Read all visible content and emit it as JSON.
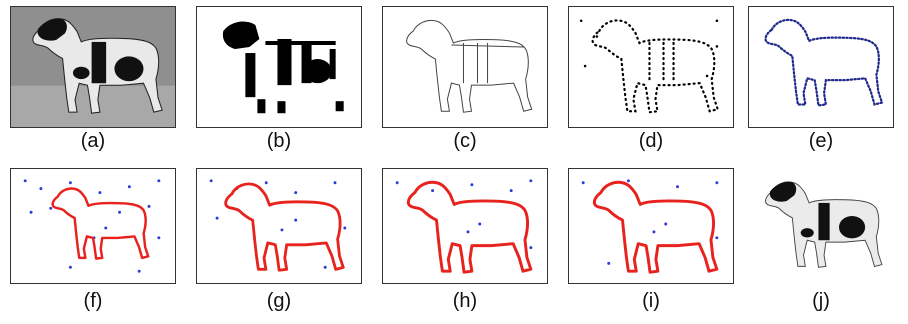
{
  "figure": {
    "row1": [
      {
        "id": "a",
        "label": "(a)"
      },
      {
        "id": "b",
        "label": "(b)"
      },
      {
        "id": "c",
        "label": "(c)"
      },
      {
        "id": "d",
        "label": "(d)"
      },
      {
        "id": "e",
        "label": "(e)"
      }
    ],
    "row2": [
      {
        "id": "f",
        "label": "(f)"
      },
      {
        "id": "g",
        "label": "(g)"
      },
      {
        "id": "h",
        "label": "(h)"
      },
      {
        "id": "i",
        "label": "(i)"
      },
      {
        "id": "j",
        "label": "(j)"
      }
    ]
  },
  "colors": {
    "contour_red": "#e8231e",
    "points_blue": "#2b3ad9",
    "contour_navy": "#1f2a8a"
  }
}
